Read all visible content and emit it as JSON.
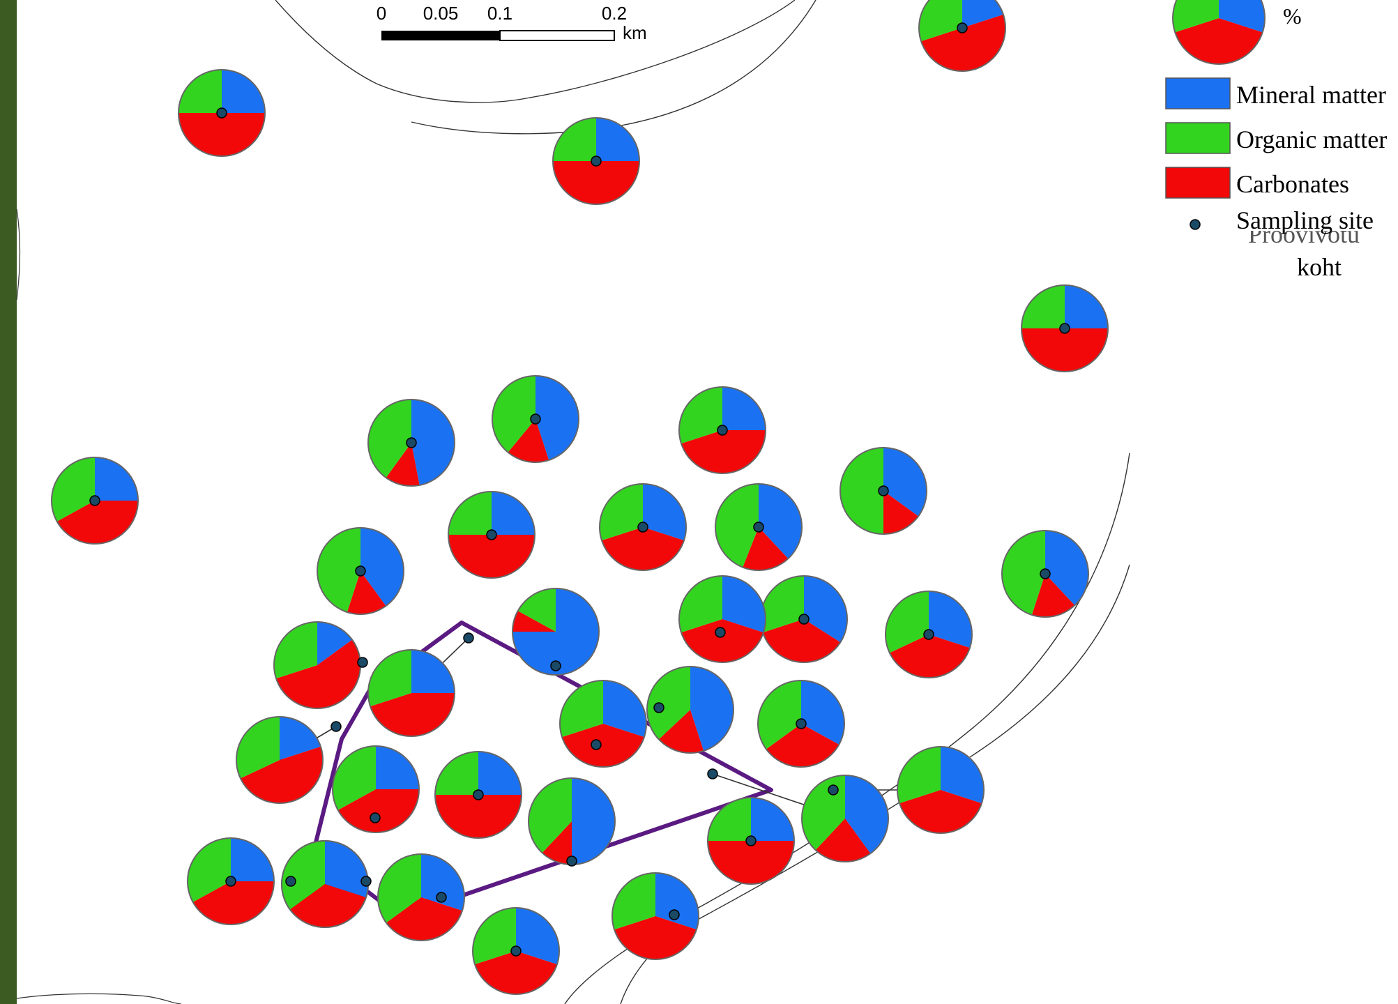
{
  "colors": {
    "mineral": "#1a72f2",
    "organic": "#33d41f",
    "carbonates": "#f20808",
    "site": "#1a4a66",
    "boundary": "#5a1a82",
    "frame": "#3b5b23",
    "line": "#333333"
  },
  "scale_bar": {
    "ticks": [
      "0",
      "0.05",
      "0.1",
      "0.2"
    ],
    "unit": "km"
  },
  "legend": {
    "unit": "%",
    "items": [
      {
        "key": "mineral",
        "label": "Mineral matter"
      },
      {
        "key": "organic",
        "label": "Organic matter"
      },
      {
        "key": "carbonates",
        "label": "Carbonates"
      }
    ],
    "site_label": "Sampling site",
    "site_label_obscured": "Proovivõtu",
    "site_label_local": "koht"
  },
  "pie_order": [
    "Mineral matter",
    "Carbonates",
    "Organic matter"
  ],
  "samples": [
    {
      "mineral": 20,
      "carbonates": 50,
      "organic": 30
    },
    {
      "mineral": 25,
      "carbonates": 50,
      "organic": 25
    },
    {
      "mineral": 25,
      "carbonates": 50,
      "organic": 25
    },
    {
      "mineral": 25,
      "carbonates": 50,
      "organic": 25
    },
    {
      "mineral": 25,
      "carbonates": 42,
      "organic": 33
    },
    {
      "mineral": 47,
      "carbonates": 13,
      "organic": 40
    },
    {
      "mineral": 45,
      "carbonates": 16,
      "organic": 39
    },
    {
      "mineral": 25,
      "carbonates": 45,
      "organic": 30
    },
    {
      "mineral": 35,
      "carbonates": 15,
      "organic": 50
    },
    {
      "mineral": 25,
      "carbonates": 50,
      "organic": 25
    },
    {
      "mineral": 30,
      "carbonates": 40,
      "organic": 30
    },
    {
      "mineral": 38,
      "carbonates": 18,
      "organic": 44
    },
    {
      "mineral": 40,
      "carbonates": 15,
      "organic": 45
    },
    {
      "mineral": 38,
      "carbonates": 17,
      "organic": 45
    },
    {
      "mineral": 75,
      "carbonates": 8,
      "organic": 17
    },
    {
      "mineral": 34,
      "carbonates": 36,
      "organic": 30
    },
    {
      "mineral": 30,
      "carbonates": 38,
      "organic": 32
    },
    {
      "mineral": 30,
      "carbonates": 40,
      "organic": 30
    },
    {
      "mineral": 15,
      "carbonates": 55,
      "organic": 30
    },
    {
      "mineral": 25,
      "carbonates": 45,
      "organic": 30
    },
    {
      "mineral": 33,
      "carbonates": 32,
      "organic": 35
    },
    {
      "mineral": 45,
      "carbonates": 18,
      "organic": 37
    },
    {
      "mineral": 30,
      "carbonates": 40,
      "organic": 30
    },
    {
      "mineral": 20,
      "carbonates": 48,
      "organic": 32
    },
    {
      "mineral": 25,
      "carbonates": 42,
      "organic": 33
    },
    {
      "mineral": 25,
      "carbonates": 50,
      "organic": 25
    },
    {
      "mineral": 50,
      "carbonates": 12,
      "organic": 38
    },
    {
      "mineral": 30,
      "carbonates": 40,
      "organic": 30
    },
    {
      "mineral": 40,
      "carbonates": 22,
      "organic": 38
    },
    {
      "mineral": 25,
      "carbonates": 50,
      "organic": 25
    },
    {
      "mineral": 25,
      "carbonates": 42,
      "organic": 33
    },
    {
      "mineral": 27,
      "carbonates": 43,
      "organic": 30
    },
    {
      "mineral": 30,
      "carbonates": 35,
      "organic": 35
    },
    {
      "mineral": 30,
      "carbonates": 40,
      "organic": 30
    },
    {
      "mineral": 30,
      "carbonates": 40,
      "organic": 30
    },
    {
      "mineral": 30,
      "carbonates": 35,
      "organic": 35
    }
  ]
}
